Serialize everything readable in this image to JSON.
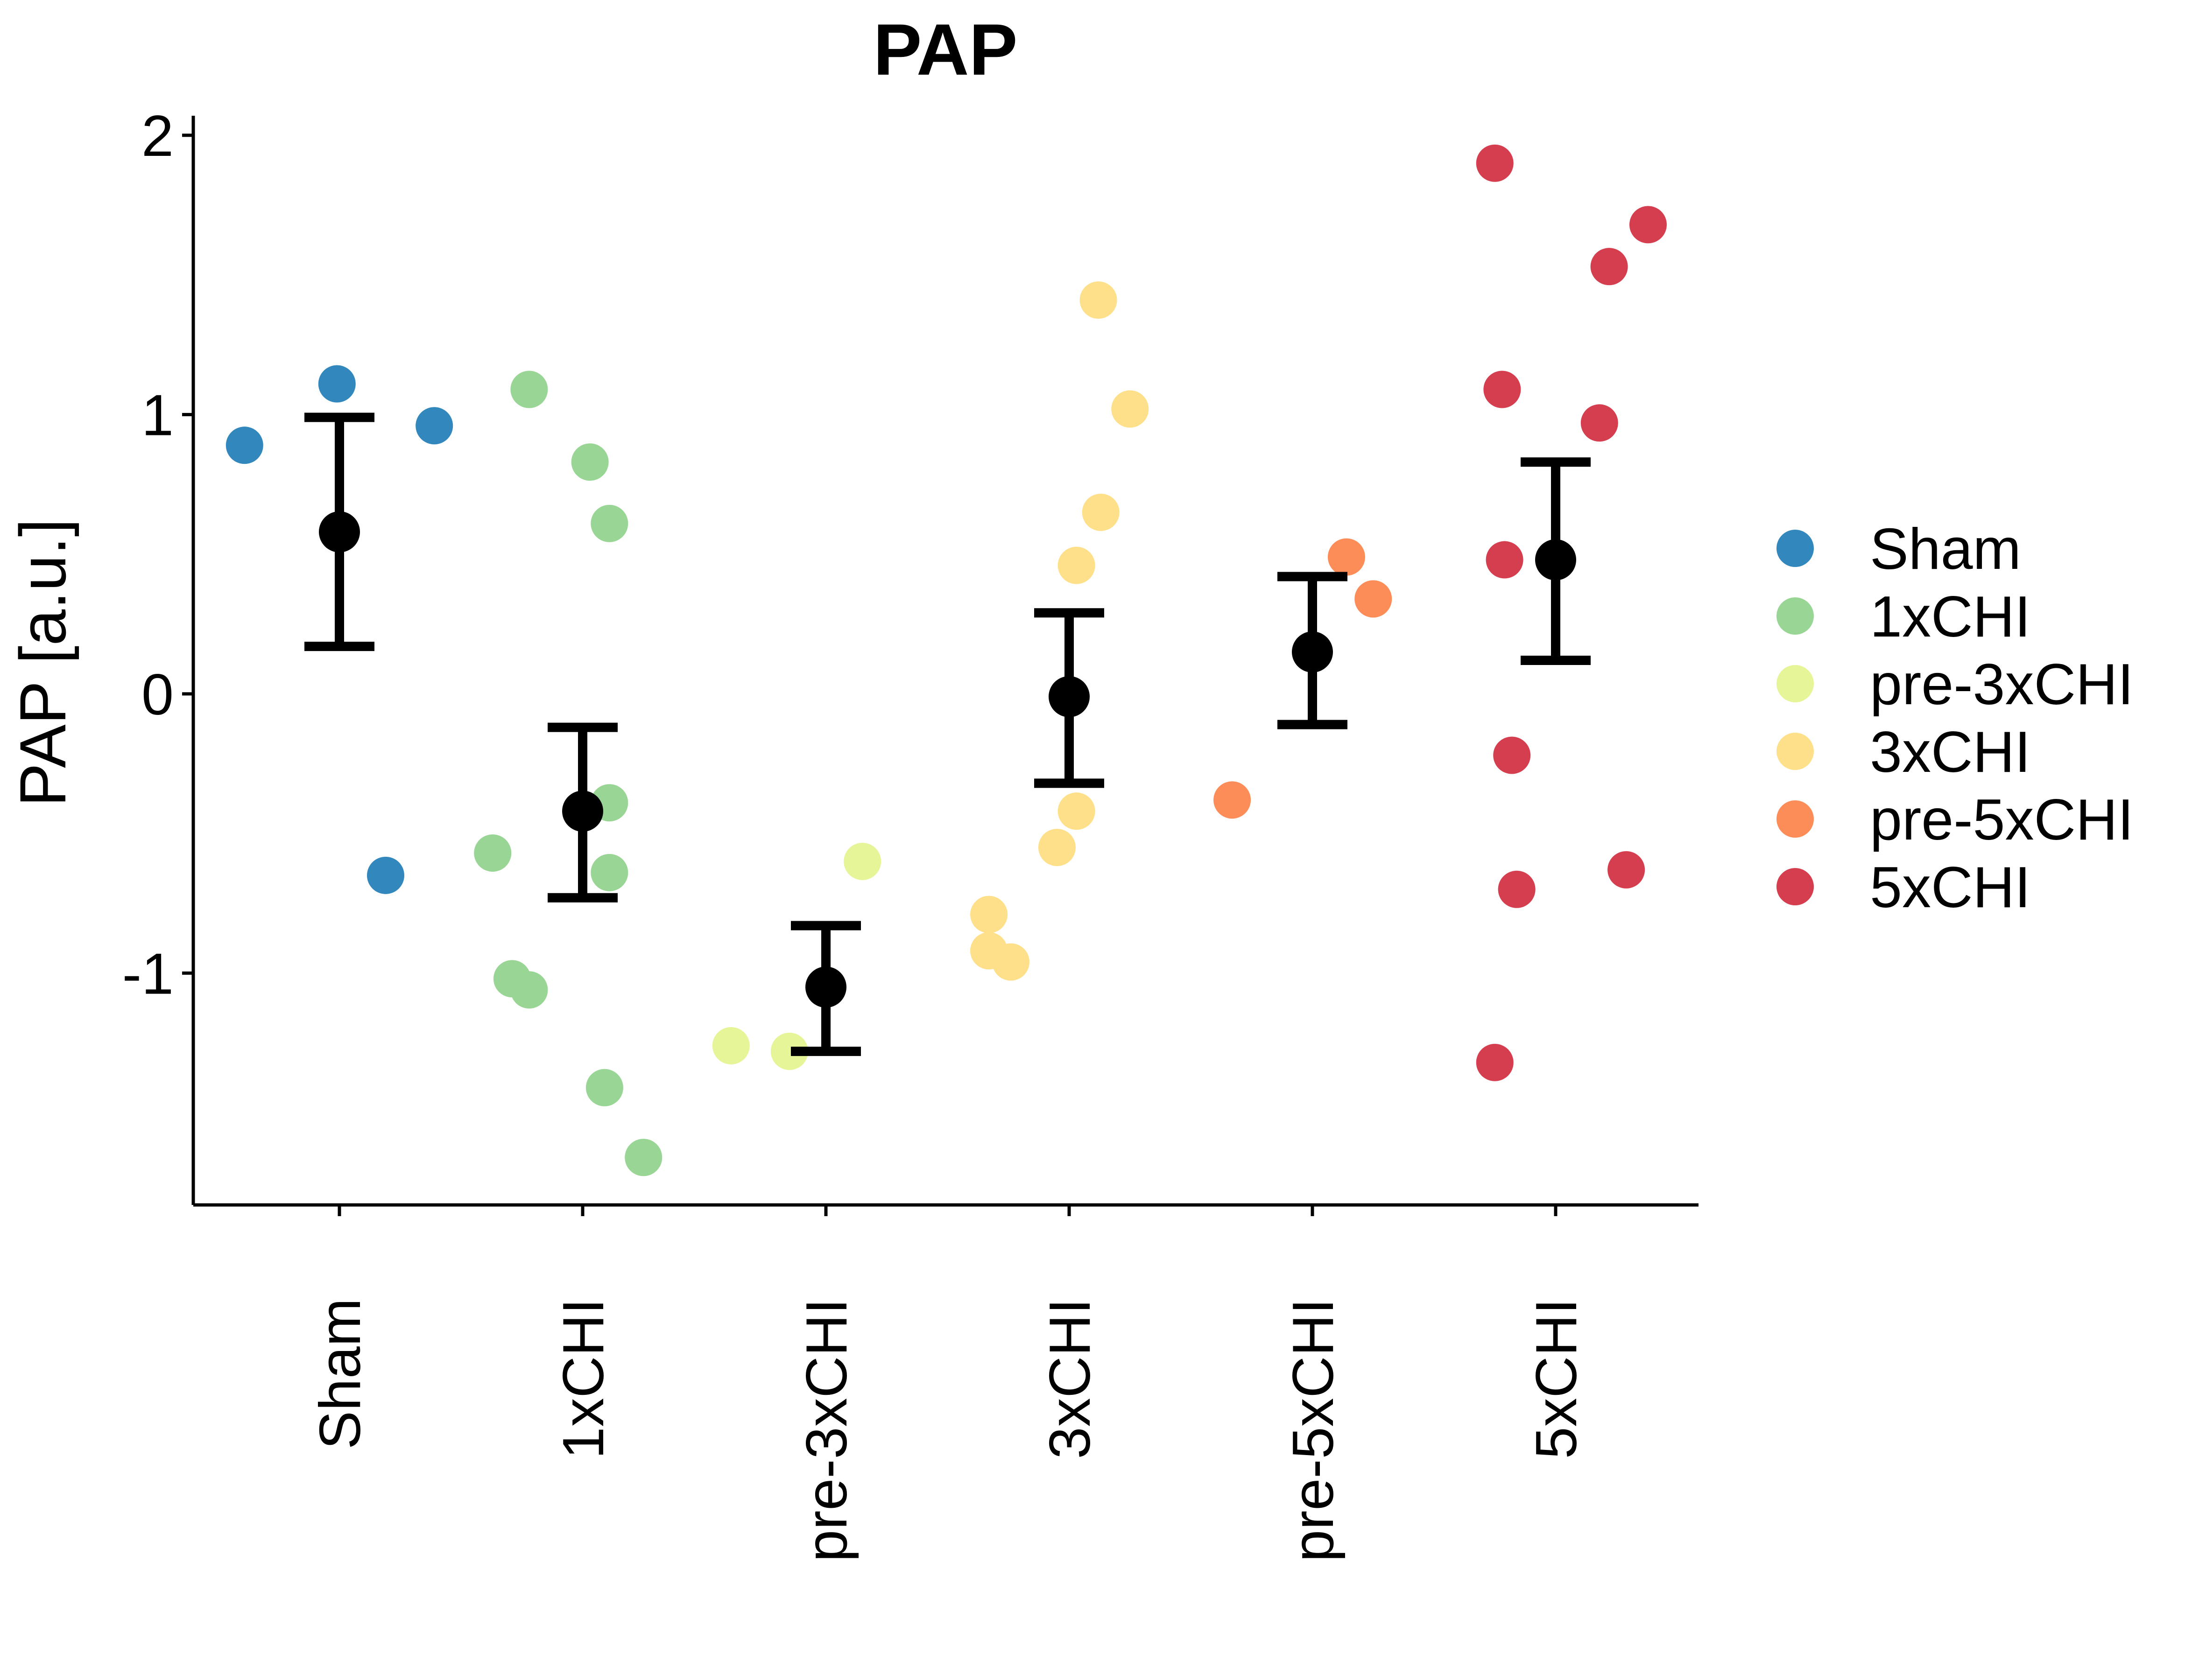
{
  "chart_data": {
    "type": "scatter",
    "title": "PAP",
    "ylabel": "PAP [a.u.]",
    "xlabel": "",
    "ylim": [
      -1.83,
      2.07
    ],
    "yticks": [
      -1,
      0,
      1,
      2
    ],
    "grid": false,
    "legend_position": "right",
    "categories": [
      "Sham",
      "1xCHI",
      "pre-3xCHI",
      "3xCHI",
      "pre-5xCHI",
      "5xCHI"
    ],
    "series": [
      {
        "name": "Sham",
        "color": "#3288bd",
        "points": [
          [
            -0.39,
            0.89
          ],
          [
            -0.01,
            1.11
          ],
          [
            0.39,
            0.96
          ],
          [
            0.19,
            -0.65
          ]
        ],
        "mean": 0.58,
        "err_low": 0.17,
        "err_high": 0.99
      },
      {
        "name": "1xCHI",
        "color": "#99d594",
        "points": [
          [
            -0.22,
            1.09
          ],
          [
            0.03,
            0.83
          ],
          [
            0.11,
            0.61
          ],
          [
            0.11,
            -0.39
          ],
          [
            0.11,
            -0.64
          ],
          [
            -0.37,
            -0.57
          ],
          [
            -0.29,
            -1.02
          ],
          [
            -0.22,
            -1.06
          ],
          [
            0.09,
            -1.41
          ],
          [
            0.25,
            -1.66
          ]
        ],
        "mean": -0.42,
        "err_low": -0.73,
        "err_high": -0.12
      },
      {
        "name": "pre-3xCHI",
        "color": "#e6f598",
        "points": [
          [
            0.15,
            -0.6
          ],
          [
            -0.39,
            -1.26
          ],
          [
            -0.15,
            -1.28
          ]
        ],
        "mean": -1.05,
        "err_low": -1.28,
        "err_high": -0.83
      },
      {
        "name": "3xCHI",
        "color": "#fee08b",
        "points": [
          [
            0.12,
            1.41
          ],
          [
            0.25,
            1.02
          ],
          [
            0.13,
            0.65
          ],
          [
            0.03,
            0.46
          ],
          [
            0.03,
            -0.42
          ],
          [
            -0.05,
            -0.55
          ],
          [
            -0.33,
            -0.79
          ],
          [
            -0.33,
            -0.92
          ],
          [
            -0.24,
            -0.96
          ]
        ],
        "mean": -0.01,
        "err_low": -0.32,
        "err_high": 0.29
      },
      {
        "name": "pre-5xCHI",
        "color": "#fc8d59",
        "points": [
          [
            0.14,
            0.49
          ],
          [
            0.25,
            0.34
          ],
          [
            -0.33,
            -0.38
          ]
        ],
        "mean": 0.15,
        "err_low": -0.11,
        "err_high": 0.42
      },
      {
        "name": "5xCHI",
        "color": "#d53e4f",
        "points": [
          [
            -0.25,
            1.9
          ],
          [
            0.38,
            1.68
          ],
          [
            0.22,
            1.53
          ],
          [
            -0.22,
            1.09
          ],
          [
            0.18,
            0.97
          ],
          [
            -0.21,
            0.48
          ],
          [
            -0.18,
            -0.22
          ],
          [
            -0.16,
            -0.7
          ],
          [
            0.29,
            -0.63
          ],
          [
            -0.25,
            -1.32
          ]
        ],
        "mean": 0.48,
        "err_low": 0.12,
        "err_high": 0.83
      }
    ],
    "summary_color": "#000000"
  }
}
